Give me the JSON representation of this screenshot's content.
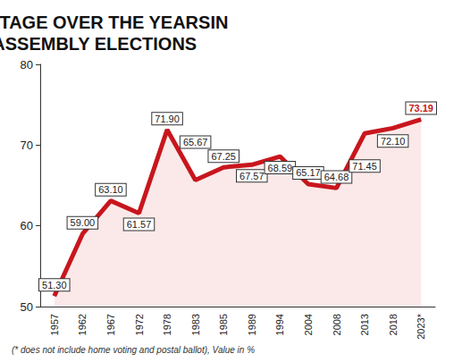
{
  "chart_data": {
    "type": "line",
    "title": "POLLING PERCENTAGE OVER THE YEARSIN KARNATAKA ASSEMBLY ELECTIONS",
    "note": "(* does not include home voting and postal ballot), Value in %",
    "categories": [
      "1957",
      "1962",
      "1967",
      "1972",
      "1978",
      "1983",
      "1985",
      "1989",
      "1994",
      "2004",
      "2008",
      "2013",
      "2018",
      "2023*"
    ],
    "values": [
      51.3,
      59.0,
      63.1,
      61.57,
      71.9,
      65.67,
      67.25,
      67.57,
      68.59,
      65.17,
      64.68,
      71.45,
      72.1,
      73.19
    ],
    "value_labels": [
      "51.30",
      "59.00",
      "63.10",
      "61.57",
      "71.90",
      "65.67",
      "67.25",
      "67.57",
      "68.59",
      "65.17",
      "64.68",
      "71.45",
      "72.10",
      "73.19"
    ],
    "color": "#c8161d",
    "ylim": [
      50,
      80
    ],
    "yticks": [
      50,
      60,
      70,
      80
    ],
    "grid": false,
    "data_labels": true,
    "marker": "none"
  }
}
